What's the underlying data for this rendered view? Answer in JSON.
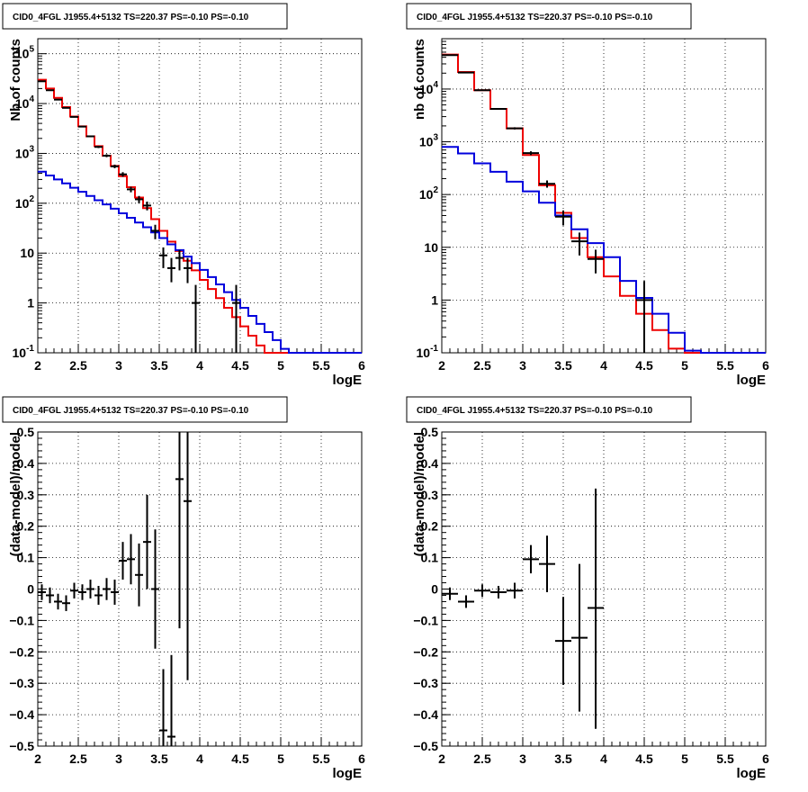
{
  "panels_title": "CID0_4FGL J1955.4+5132 TS=220.37 PS=-0.10 PS=-0.10",
  "colors": {
    "total_model": "#ee0000",
    "source_model": "#0000dd",
    "data": "#000000",
    "grid": "#000000"
  },
  "chart_data": [
    {
      "type": "line",
      "title": "CID0_4FGL J1955.4+5132 TS=220.37 PS=-0.10 PS=-0.10",
      "xlabel": "logE",
      "ylabel": "Nb of counts",
      "xlim": [
        2,
        6
      ],
      "ylim": [
        0.1,
        200000
      ],
      "ylog": true,
      "grid": true,
      "xticks": [
        "2",
        "2.5",
        "3",
        "3.5",
        "4",
        "4.5",
        "5",
        "5.5",
        "6"
      ],
      "yticks": [
        {
          "v": 0.1,
          "l": "10^-1"
        },
        {
          "v": 1,
          "l": "1"
        },
        {
          "v": 10,
          "l": "10"
        },
        {
          "v": 100,
          "l": "10^2"
        },
        {
          "v": 1000,
          "l": "10^3"
        },
        {
          "v": 10000,
          "l": "10^4"
        },
        {
          "v": 100000,
          "l": "10^5"
        }
      ],
      "bin_edges": [
        2.0,
        2.1,
        2.2,
        2.3,
        2.4,
        2.5,
        2.6,
        2.7,
        2.8,
        2.9,
        3.0,
        3.1,
        3.2,
        3.3,
        3.4,
        3.5,
        3.6,
        3.7,
        3.8,
        3.9,
        4.0,
        4.1,
        4.2,
        4.3,
        4.4,
        4.5,
        4.6,
        4.7,
        4.8,
        4.9,
        5.0,
        5.1,
        5.2,
        5.3,
        5.4,
        5.5,
        5.6,
        5.7,
        5.8,
        5.9,
        6.0
      ],
      "series": [
        {
          "style": "hist",
          "color": "#ee0000",
          "values": [
            30000,
            20000,
            13000,
            8500,
            5500,
            3500,
            2200,
            1400,
            900,
            560,
            350,
            210,
            130,
            80,
            48,
            28,
            17,
            11,
            7,
            4.5,
            2.9,
            1.9,
            1.25,
            0.8,
            0.52,
            0.34,
            0.22,
            0.14,
            0.1,
            0.1,
            0.1,
            0.1,
            0.1,
            0.1,
            0.1,
            0.1,
            0.1,
            0.1,
            0.1,
            0.1
          ]
        },
        {
          "style": "hist",
          "color": "#0000dd",
          "values": [
            430,
            360,
            300,
            250,
            205,
            170,
            140,
            115,
            95,
            78,
            63,
            51,
            41,
            33,
            26,
            20,
            15,
            11.5,
            8.5,
            6.3,
            4.6,
            3.3,
            2.35,
            1.65,
            1.15,
            0.8,
            0.55,
            0.38,
            0.26,
            0.18,
            0.12,
            0.1,
            0.1,
            0.1,
            0.1,
            0.1,
            0.1,
            0.1,
            0.1,
            0.1
          ]
        },
        {
          "style": "points",
          "color": "#000000",
          "points": [
            {
              "x": 2.05,
              "y": 28000,
              "lo": 27500,
              "hi": 28500
            },
            {
              "x": 2.15,
              "y": 18500,
              "lo": 18200,
              "hi": 18800
            },
            {
              "x": 2.25,
              "y": 12000,
              "lo": 11700,
              "hi": 12300
            },
            {
              "x": 2.35,
              "y": 8200,
              "lo": 8000,
              "hi": 8400
            },
            {
              "x": 2.45,
              "y": 5400,
              "lo": 5250,
              "hi": 5550
            },
            {
              "x": 2.55,
              "y": 3450,
              "lo": 3340,
              "hi": 3560
            },
            {
              "x": 2.65,
              "y": 2200,
              "lo": 2110,
              "hi": 2290
            },
            {
              "x": 2.75,
              "y": 1350,
              "lo": 1280,
              "hi": 1420
            },
            {
              "x": 2.85,
              "y": 900,
              "lo": 840,
              "hi": 960
            },
            {
              "x": 2.95,
              "y": 550,
              "lo": 505,
              "hi": 595
            },
            {
              "x": 3.05,
              "y": 380,
              "lo": 340,
              "hi": 420
            },
            {
              "x": 3.15,
              "y": 190,
              "lo": 166,
              "hi": 214
            },
            {
              "x": 3.25,
              "y": 120,
              "lo": 100,
              "hi": 140
            },
            {
              "x": 3.35,
              "y": 90,
              "lo": 72,
              "hi": 108
            },
            {
              "x": 3.45,
              "y": 28,
              "lo": 19,
              "hi": 37
            },
            {
              "x": 3.55,
              "y": 9,
              "lo": 5,
              "hi": 13
            },
            {
              "x": 3.65,
              "y": 5,
              "lo": 2.6,
              "hi": 8
            },
            {
              "x": 3.75,
              "y": 8,
              "lo": 4.5,
              "hi": 11.5
            },
            {
              "x": 3.85,
              "y": 5,
              "lo": 2.5,
              "hi": 8
            },
            {
              "x": 3.95,
              "y": 1,
              "lo": 0.1,
              "hi": 2.3
            },
            {
              "x": 4.45,
              "y": 1,
              "lo": 0.1,
              "hi": 2.3
            }
          ]
        }
      ]
    },
    {
      "type": "line",
      "title": "CID0_4FGL J1955.4+5132 TS=220.37 PS=-0.10 PS=-0.10",
      "xlabel": "logE",
      "ylabel": "nb of counts",
      "xlim": [
        2,
        6
      ],
      "ylim": [
        0.1,
        90000
      ],
      "ylog": true,
      "grid": true,
      "xticks": [
        "2",
        "2.5",
        "3",
        "3.5",
        "4",
        "4.5",
        "5",
        "5.5",
        "6"
      ],
      "yticks": [
        {
          "v": 0.1,
          "l": "10^-1"
        },
        {
          "v": 1,
          "l": "1"
        },
        {
          "v": 10,
          "l": "10"
        },
        {
          "v": 100,
          "l": "10^2"
        },
        {
          "v": 1000,
          "l": "10^3"
        },
        {
          "v": 10000,
          "l": "10^4"
        }
      ],
      "bin_edges": [
        2.0,
        2.2,
        2.4,
        2.6,
        2.8,
        3.0,
        3.2,
        3.4,
        3.6,
        3.8,
        4.0,
        4.2,
        4.4,
        4.6,
        4.8,
        5.0,
        5.2,
        5.4,
        5.6,
        5.8,
        6.0
      ],
      "series": [
        {
          "style": "hist",
          "color": "#ee0000",
          "values": [
            45000,
            21000,
            9500,
            4200,
            1800,
            560,
            150,
            45,
            15,
            6.5,
            2.8,
            1.2,
            0.55,
            0.27,
            0.12,
            0.1,
            0.1,
            0.1,
            0.1,
            0.1
          ]
        },
        {
          "style": "hist",
          "color": "#0000dd",
          "values": [
            800,
            600,
            390,
            270,
            175,
            115,
            70,
            40,
            22,
            12,
            6.5,
            2.3,
            1.1,
            0.55,
            0.24,
            0.11,
            0.1,
            0.1,
            0.1,
            0.1
          ]
        },
        {
          "style": "points",
          "color": "#000000",
          "points": [
            {
              "x": 2.1,
              "y": 44000,
              "lo": 43500,
              "hi": 44500
            },
            {
              "x": 2.3,
              "y": 20500,
              "lo": 20200,
              "hi": 20800
            },
            {
              "x": 2.5,
              "y": 9500,
              "lo": 9300,
              "hi": 9700
            },
            {
              "x": 2.7,
              "y": 4200,
              "lo": 4070,
              "hi": 4330
            },
            {
              "x": 2.9,
              "y": 1800,
              "lo": 1715,
              "hi": 1885
            },
            {
              "x": 3.1,
              "y": 610,
              "lo": 560,
              "hi": 660
            },
            {
              "x": 3.3,
              "y": 160,
              "lo": 135,
              "hi": 185
            },
            {
              "x": 3.5,
              "y": 38,
              "lo": 26,
              "hi": 50
            },
            {
              "x": 3.7,
              "y": 13,
              "lo": 7,
              "hi": 19
            },
            {
              "x": 3.9,
              "y": 6,
              "lo": 3.2,
              "hi": 9
            },
            {
              "x": 4.5,
              "y": 1,
              "lo": 0.1,
              "hi": 2.3
            }
          ]
        }
      ]
    },
    {
      "type": "scatter",
      "title": "CID0_4FGL J1955.4+5132 TS=220.37 PS=-0.10 PS=-0.10",
      "xlabel": "logE",
      "ylabel": "(data-model)/model",
      "xlim": [
        2,
        6
      ],
      "ylim": [
        -0.5,
        0.5
      ],
      "ylog": false,
      "grid": true,
      "xticks": [
        "2",
        "2.5",
        "3",
        "3.5",
        "4",
        "4.5",
        "5",
        "5.5",
        "6"
      ],
      "yticks": [
        {
          "v": -0.5,
          "l": "−0.5"
        },
        {
          "v": -0.4,
          "l": "−0.4"
        },
        {
          "v": -0.3,
          "l": "−0.3"
        },
        {
          "v": -0.2,
          "l": "−0.2"
        },
        {
          "v": -0.1,
          "l": "−0.1"
        },
        {
          "v": 0,
          "l": "0"
        },
        {
          "v": 0.1,
          "l": "0.1"
        },
        {
          "v": 0.2,
          "l": "0.2"
        },
        {
          "v": 0.3,
          "l": "0.3"
        },
        {
          "v": 0.4,
          "l": "0.4"
        },
        {
          "v": 0.5,
          "l": "0.5"
        }
      ],
      "halfwidth": 0.05,
      "series": [
        {
          "style": "points",
          "color": "#000000",
          "points": [
            {
              "x": 2.05,
              "y": -0.01,
              "lo": -0.035,
              "hi": 0.015
            },
            {
              "x": 2.15,
              "y": -0.02,
              "lo": -0.045,
              "hi": 0.005
            },
            {
              "x": 2.25,
              "y": -0.04,
              "lo": -0.065,
              "hi": -0.015
            },
            {
              "x": 2.35,
              "y": -0.045,
              "lo": -0.07,
              "hi": -0.02
            },
            {
              "x": 2.45,
              "y": -0.005,
              "lo": -0.03,
              "hi": 0.02
            },
            {
              "x": 2.55,
              "y": -0.01,
              "lo": -0.035,
              "hi": 0.015
            },
            {
              "x": 2.65,
              "y": 0.0,
              "lo": -0.03,
              "hi": 0.03
            },
            {
              "x": 2.75,
              "y": -0.02,
              "lo": -0.05,
              "hi": 0.01
            },
            {
              "x": 2.85,
              "y": 0.0,
              "lo": -0.035,
              "hi": 0.035
            },
            {
              "x": 2.95,
              "y": -0.01,
              "lo": -0.05,
              "hi": 0.03
            },
            {
              "x": 3.05,
              "y": 0.09,
              "lo": 0.03,
              "hi": 0.15
            },
            {
              "x": 3.15,
              "y": 0.095,
              "lo": 0.015,
              "hi": 0.175
            },
            {
              "x": 3.25,
              "y": 0.045,
              "lo": -0.055,
              "hi": 0.145
            },
            {
              "x": 3.35,
              "y": 0.15,
              "lo": 0.0,
              "hi": 0.3
            },
            {
              "x": 3.45,
              "y": 0.0,
              "lo": -0.19,
              "hi": 0.19
            },
            {
              "x": 3.55,
              "y": -0.45,
              "lo": -0.5,
              "hi": -0.255
            },
            {
              "x": 3.65,
              "y": -0.47,
              "lo": -0.5,
              "hi": -0.21
            },
            {
              "x": 3.75,
              "y": 0.35,
              "lo": -0.125,
              "hi": 0.5
            },
            {
              "x": 3.85,
              "y": 0.28,
              "lo": -0.29,
              "hi": 0.5
            }
          ]
        }
      ]
    },
    {
      "type": "scatter",
      "title": "CID0_4FGL J1955.4+5132 TS=220.37 PS=-0.10 PS=-0.10",
      "xlabel": "logE",
      "ylabel": "(data-model)/model",
      "xlim": [
        2,
        6
      ],
      "ylim": [
        -0.5,
        0.5
      ],
      "ylog": false,
      "grid": true,
      "xticks": [
        "2",
        "2.5",
        "3",
        "3.5",
        "4",
        "4.5",
        "5",
        "5.5",
        "6"
      ],
      "yticks": [
        {
          "v": -0.5,
          "l": "−0.5"
        },
        {
          "v": -0.4,
          "l": "−0.4"
        },
        {
          "v": -0.3,
          "l": "−0.3"
        },
        {
          "v": -0.2,
          "l": "−0.2"
        },
        {
          "v": -0.1,
          "l": "−0.1"
        },
        {
          "v": 0,
          "l": "0"
        },
        {
          "v": 0.1,
          "l": "0.1"
        },
        {
          "v": 0.2,
          "l": "0.2"
        },
        {
          "v": 0.3,
          "l": "0.3"
        },
        {
          "v": 0.4,
          "l": "0.4"
        },
        {
          "v": 0.5,
          "l": "0.5"
        }
      ],
      "halfwidth": 0.1,
      "series": [
        {
          "style": "points",
          "color": "#000000",
          "points": [
            {
              "x": 2.1,
              "y": -0.015,
              "lo": -0.035,
              "hi": 0.005
            },
            {
              "x": 2.3,
              "y": -0.04,
              "lo": -0.06,
              "hi": -0.02
            },
            {
              "x": 2.5,
              "y": -0.005,
              "lo": -0.025,
              "hi": 0.015
            },
            {
              "x": 2.7,
              "y": -0.01,
              "lo": -0.03,
              "hi": 0.01
            },
            {
              "x": 2.9,
              "y": -0.005,
              "lo": -0.03,
              "hi": 0.02
            },
            {
              "x": 3.1,
              "y": 0.095,
              "lo": 0.05,
              "hi": 0.14
            },
            {
              "x": 3.3,
              "y": 0.08,
              "lo": -0.01,
              "hi": 0.17
            },
            {
              "x": 3.5,
              "y": -0.165,
              "lo": -0.305,
              "hi": -0.025
            },
            {
              "x": 3.7,
              "y": -0.155,
              "lo": -0.39,
              "hi": 0.08
            },
            {
              "x": 3.9,
              "y": -0.06,
              "lo": -0.445,
              "hi": 0.32
            }
          ]
        }
      ]
    }
  ]
}
